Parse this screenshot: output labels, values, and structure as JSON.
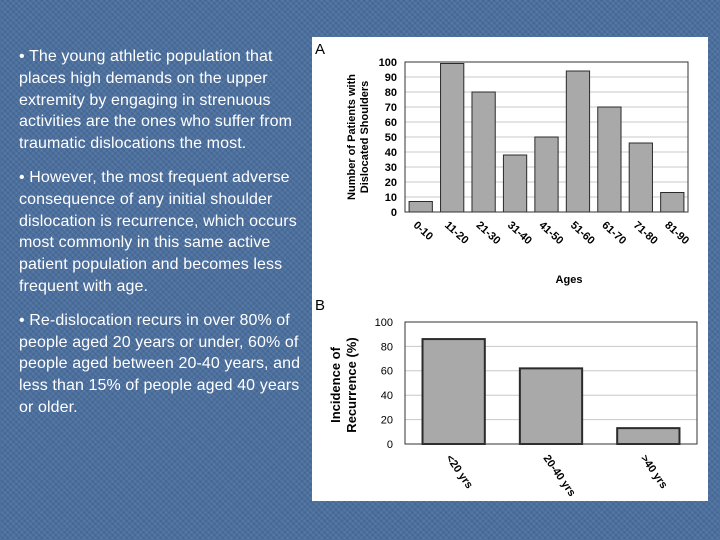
{
  "bullets": [
    "• The young athletic population that places high demands on the upper extremity by engaging in strenuous activities are the ones who suffer from traumatic dislocations the most.",
    "• However, the most frequent adverse consequence of any initial shoulder dislocation is recurrence, which occurs most commonly in this same active patient population and becomes less frequent with age.",
    "• Re-dislocation recurs in over 80% of people aged 20 years or under, 60% of people aged between 20-40 years, and less than 15% of people aged 40 years or older."
  ],
  "colors": {
    "background": "#4a6e9e",
    "text": "#ffffff",
    "bar_fill": "#a9a9a9",
    "bar_stroke": "#2b2b2b"
  },
  "chart_data": [
    {
      "panel_label": "A",
      "type": "bar",
      "categories": [
        "0-10",
        "11-20",
        "21-30",
        "31-40",
        "41-50",
        "51-60",
        "61-70",
        "71-80",
        "81-90"
      ],
      "values": [
        7,
        99,
        80,
        38,
        50,
        94,
        70,
        46,
        13
      ],
      "xlabel": "Ages",
      "ylabel": "Number of Patients with Dislocated Shoulders",
      "ylim": [
        0,
        100
      ],
      "yticks": [
        0,
        10,
        20,
        30,
        40,
        50,
        60,
        70,
        80,
        90,
        100
      ],
      "grid": true
    },
    {
      "panel_label": "B",
      "type": "bar",
      "categories": [
        "<20 yrs",
        "20-40 yrs",
        ">40 yrs"
      ],
      "values": [
        86,
        62,
        13
      ],
      "xlabel": "",
      "ylabel": "Incidence of Recurrence (%)",
      "ylim": [
        0,
        100
      ],
      "yticks": [
        0,
        20,
        40,
        60,
        80,
        100
      ],
      "grid": true
    }
  ]
}
